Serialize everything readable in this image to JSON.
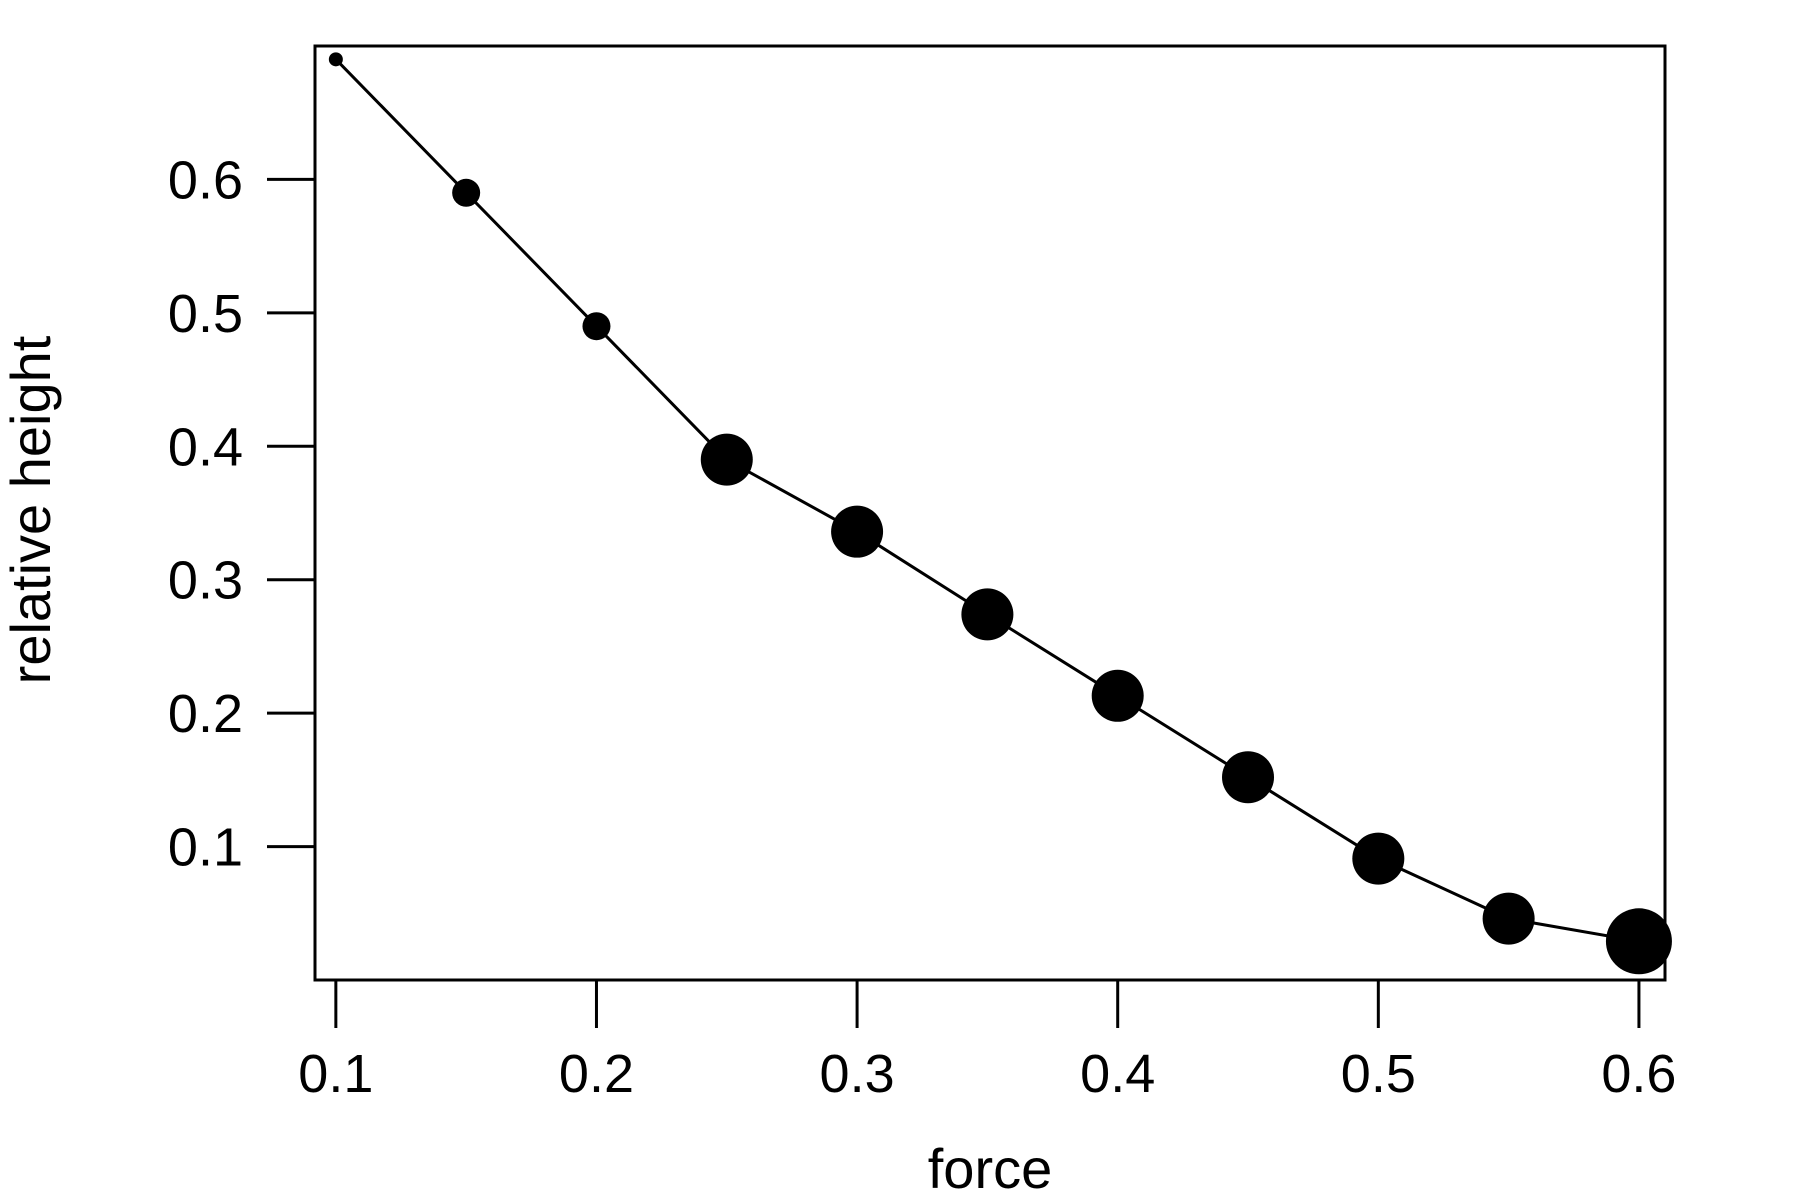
{
  "chart_data": {
    "type": "scatter",
    "title": "",
    "xlabel": "force",
    "ylabel": "relative height",
    "xlim": [
      0.092,
      0.61
    ],
    "ylim": [
      0.0,
      0.7
    ],
    "x_ticks": [
      0.1,
      0.2,
      0.3,
      0.4,
      0.5,
      0.6
    ],
    "x_tick_labels": [
      "0.1",
      "0.2",
      "0.3",
      "0.4",
      "0.5",
      "0.6"
    ],
    "y_ticks": [
      0.1,
      0.2,
      0.3,
      0.4,
      0.5,
      0.6
    ],
    "y_tick_labels": [
      "0.1",
      "0.2",
      "0.3",
      "0.4",
      "0.5",
      "0.6"
    ],
    "grid": false,
    "connected_by_line": true,
    "marker_color": "#000000",
    "line_color": "#000000",
    "series": [
      {
        "x": [
          0.1,
          0.15,
          0.2,
          0.25,
          0.3,
          0.35,
          0.4,
          0.45,
          0.5,
          0.55,
          0.6
        ],
        "y": [
          0.69,
          0.59,
          0.49,
          0.39,
          0.336,
          0.274,
          0.213,
          0.152,
          0.091,
          0.046,
          0.029
        ],
        "marker_size": [
          1,
          2,
          2,
          4,
          4,
          4,
          4,
          4,
          4,
          4,
          5
        ]
      }
    ]
  }
}
